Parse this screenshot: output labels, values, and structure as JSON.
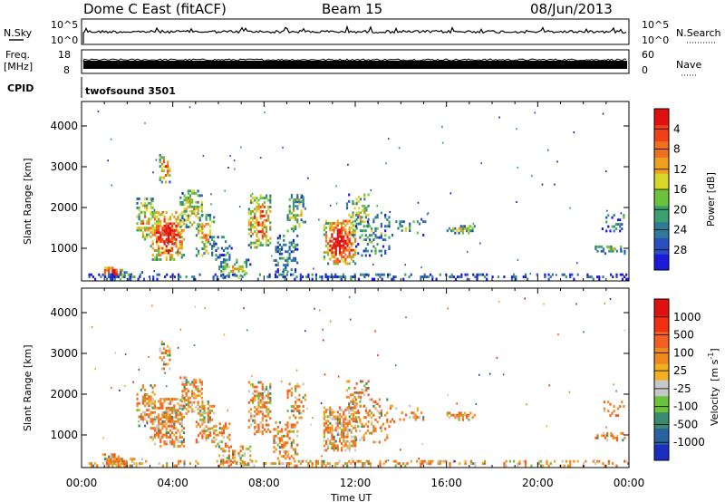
{
  "header": {
    "station": "Dome C East (fitACF)",
    "beam": "Beam 15",
    "date": "08/Jun/2013"
  },
  "strip_labels": {
    "nsky": "N.Sky",
    "nsky_top": "10^5",
    "nsky_bottom": "10^0",
    "nsearch": "N.Search",
    "nsearch_top": "10^5",
    "nsearch_bottom": "10^0",
    "freq_line1": "Freq.",
    "freq_line2": "[MHz]",
    "freq_top": "18",
    "freq_bottom": "8",
    "nave": "Nave",
    "nave_top": "60",
    "nave_bottom": "0",
    "cpid": "CPID",
    "cpid_value": "twofsound 3501"
  },
  "chart_data": [
    {
      "type": "heatmap",
      "title": "",
      "ylabel": "Slant Range [km]",
      "ylim": [
        200,
        4600
      ],
      "yticks": [
        "1000",
        "2000",
        "3000",
        "4000"
      ],
      "xlim": [
        0,
        24
      ],
      "colorbar": {
        "label": "Power [dB]",
        "ticks": [
          "4",
          "8",
          "12",
          "16",
          "20",
          "24",
          "28"
        ],
        "colors": [
          "#1a1ad8",
          "#2a4fc0",
          "#2f7a96",
          "#3aa06e",
          "#6cc23a",
          "#d8d82a",
          "#f0a020",
          "#f07020",
          "#f04018",
          "#e01010"
        ]
      }
    },
    {
      "type": "heatmap",
      "title": "",
      "ylabel": "Slant Range [km]",
      "ylim": [
        200,
        4600
      ],
      "yticks": [
        "1000",
        "2000",
        "3000",
        "4000"
      ],
      "xlabel": "Time UT",
      "xticks": [
        "00:00",
        "04:00",
        "08:00",
        "12:00",
        "16:00",
        "20:00",
        "00:00"
      ],
      "xlim": [
        0,
        24
      ],
      "colorbar": {
        "label": "Velocity",
        "unit": "[m s",
        "unit_exp": "-1",
        "unit_close": "]",
        "ticks": [
          "1000",
          "500",
          "100",
          "25",
          "-25",
          "-100",
          "-500",
          "-1000"
        ],
        "colors": [
          "#1a2fc0",
          "#2a62a0",
          "#3a8a70",
          "#6cc23a",
          "#c8c8c8",
          "#f0b020",
          "#f08820",
          "#f06020",
          "#f03010",
          "#e01010"
        ]
      }
    }
  ]
}
